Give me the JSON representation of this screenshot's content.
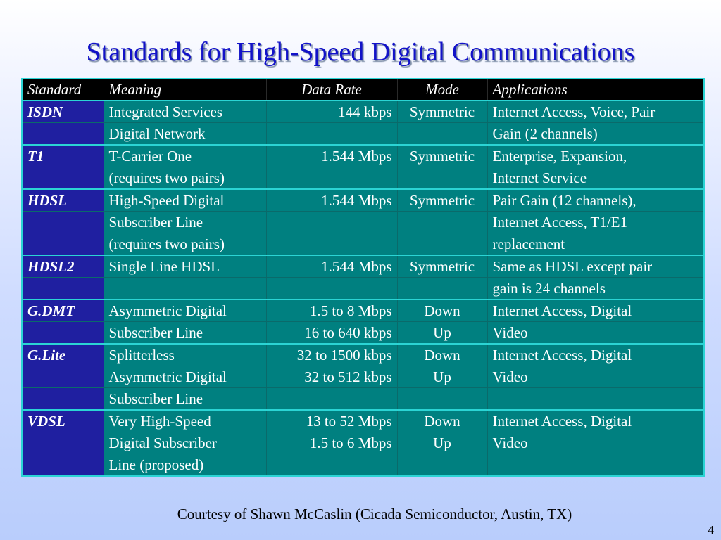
{
  "slide": {
    "title": "Standards for High-Speed Digital Communications",
    "courtesy": "Courtesy of Shawn McCaslin (Cicada Semiconductor, Austin, TX)",
    "page_number": "4"
  },
  "table": {
    "headers": {
      "standard": "Standard",
      "meaning": "Meaning",
      "rate": "Data Rate",
      "mode": "Mode",
      "applications": "Applications"
    },
    "groups": [
      {
        "name": "ISDN",
        "rows": [
          {
            "meaning": "Integrated Services",
            "rate": "144 kbps",
            "mode": "Symmetric",
            "app": "Internet Access, Voice, Pair"
          },
          {
            "meaning": "Digital Network",
            "rate": "",
            "mode": "",
            "app": "Gain (2 channels)"
          }
        ]
      },
      {
        "name": "T1",
        "rows": [
          {
            "meaning": "T-Carrier One",
            "rate": "1.544 Mbps",
            "mode": "Symmetric",
            "app": "Enterprise, Expansion,"
          },
          {
            "meaning": "(requires two pairs)",
            "rate": "",
            "mode": "",
            "app": "Internet Service"
          }
        ]
      },
      {
        "name": "HDSL",
        "rows": [
          {
            "meaning": "High-Speed Digital",
            "rate": "1.544 Mbps",
            "mode": "Symmetric",
            "app": "Pair Gain (12 channels),"
          },
          {
            "meaning": "Subscriber Line",
            "rate": "",
            "mode": "",
            "app": "Internet Access, T1/E1"
          },
          {
            "meaning": "(requires two pairs)",
            "rate": "",
            "mode": "",
            "app": "replacement"
          }
        ]
      },
      {
        "name": "HDSL2",
        "rows": [
          {
            "meaning": "Single Line HDSL",
            "rate": "1.544 Mbps",
            "mode": "Symmetric",
            "app": "Same as HDSL except pair"
          },
          {
            "meaning": "",
            "rate": "",
            "mode": "",
            "app": "gain is 24 channels"
          }
        ]
      },
      {
        "name": "G.DMT",
        "rows": [
          {
            "meaning": "Asymmetric Digital",
            "rate": "1.5 to 8 Mbps",
            "mode": "Down",
            "app": "Internet Access, Digital"
          },
          {
            "meaning": "Subscriber Line",
            "rate": "16 to 640 kbps",
            "mode": "Up",
            "app": "Video"
          }
        ]
      },
      {
        "name": "G.Lite",
        "rows": [
          {
            "meaning": "Splitterless",
            "rate": "32 to 1500 kbps",
            "mode": "Down",
            "app": "Internet Access, Digital"
          },
          {
            "meaning": "Asymmetric Digital",
            "rate": "32 to 512 kbps",
            "mode": "Up",
            "app": "Video"
          },
          {
            "meaning": "Subscriber Line",
            "rate": "",
            "mode": "",
            "app": ""
          }
        ]
      },
      {
        "name": "VDSL",
        "rows": [
          {
            "meaning": "Very High-Speed",
            "rate": "13 to 52 Mbps",
            "mode": "Down",
            "app": "Internet Access, Digital"
          },
          {
            "meaning": "Digital Subscriber",
            "rate": "1.5 to 6 Mbps",
            "mode": "Up",
            "app": "Video"
          },
          {
            "meaning": "Line (proposed)",
            "rate": "",
            "mode": "",
            "app": ""
          }
        ]
      }
    ]
  },
  "colors": {
    "title": "#1212c8",
    "header_bg": "#000000",
    "standard_bg": "#1f1fa0",
    "cell_bg": "#008080",
    "grid_line": "#2bd4d4"
  }
}
